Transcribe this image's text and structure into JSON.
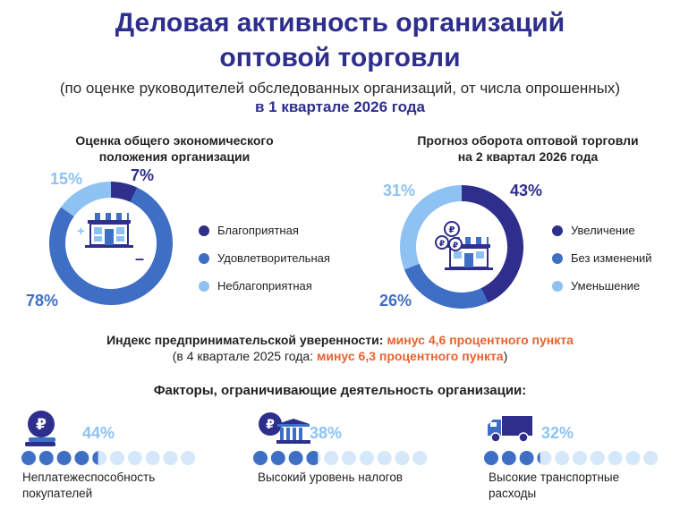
{
  "header": {
    "title_line1": "Деловая активность организаций",
    "title_line2": "оптовой торговли",
    "subtitle": "(по оценке руководителей обследованных организаций, от числа опрошенных)",
    "period": "в 1 квартале 2026 года"
  },
  "colors": {
    "dark": "#2e2e8c",
    "medium": "#3f6fc4",
    "light": "#8ec2f2",
    "accent": "#e8622f"
  },
  "chart_data": [
    {
      "type": "pie",
      "title_line1": "Оценка общего экономического",
      "title_line2": "положения организации",
      "categories": [
        "Благоприятная",
        "Удовлетворительная",
        "Неблагоприятная"
      ],
      "values": [
        7,
        78,
        15
      ],
      "labels": [
        "7%",
        "78%",
        "15%"
      ]
    },
    {
      "type": "pie",
      "title_line1": "Прогноз оборота оптовой торговли",
      "title_line2": "на 2 квартал 2026 года",
      "categories": [
        "Увеличение",
        "Без изменений",
        "Уменьшение"
      ],
      "values": [
        43,
        26,
        31
      ],
      "labels": [
        "43%",
        "26%",
        "31%"
      ]
    },
    {
      "type": "bar",
      "title": "Факторы, ограничивающие деятельность организации:",
      "categories": [
        "Неплатежеспособность покупателей",
        "Высокий уровень налогов",
        "Высокие транспортные расходы"
      ],
      "values": [
        44,
        38,
        32
      ],
      "labels": [
        "44%",
        "38%",
        "32%"
      ]
    }
  ],
  "index": {
    "label": "Индекс предпринимательской уверенности:",
    "value": "минус 4,6 процентного пункта",
    "prev_prefix": "(в 4 квартале 2025 года:",
    "prev_value": "минус 6,3 процентного пункта",
    "prev_suffix": ")"
  },
  "factors": {
    "items": [
      {
        "label_line1": "Неплатежеспособность",
        "label_line2": "покупателей",
        "icon": "ruble-coin-stack-icon"
      },
      {
        "label_line1": "Высокий уровень налогов",
        "label_line2": "",
        "icon": "ruble-bank-icon"
      },
      {
        "label_line1": "Высокие транспортные",
        "label_line2": "расходы",
        "icon": "truck-icon"
      }
    ]
  },
  "donut_marks": {
    "plus": "+",
    "minus": "–"
  }
}
